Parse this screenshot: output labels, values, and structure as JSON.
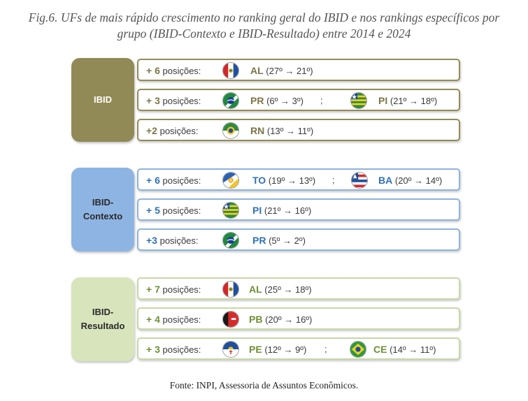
{
  "title_line1": "Fig.6. UFs de mais rápido crescimento no ranking geral do IBID e nos rankings específicos por",
  "title_line2": "grupo (IBID-Contexto e IBID-Resultado) entre 2014 e 2024",
  "source": "Fonte: INPI, Assessoria de Assuntos Econômicos.",
  "colors": {
    "ibid_box": "#928a56",
    "ibid_accent": "#7c7546",
    "contexto_box": "#8eb4e3",
    "contexto_accent": "#2f72b8",
    "resultado_box": "#d8e4bc",
    "resultado_accent": "#6f8f34"
  },
  "groups": [
    {
      "label_line1": "IBID",
      "label_line2": "",
      "rows": [
        {
          "gain": "+ 6",
          "unit": "posições:",
          "states": [
            {
              "uf": "AL",
              "detail": "(27º → 21º)",
              "flag_icon": "alagoas-flag-icon"
            }
          ]
        },
        {
          "gain": "+ 3",
          "unit": "posições:",
          "states": [
            {
              "uf": "PR",
              "detail": "(6º → 3º)",
              "flag_icon": "parana-flag-icon"
            },
            {
              "uf": "PI",
              "detail": "(21º → 18º)",
              "flag_icon": "piaui-flag-icon"
            }
          ]
        },
        {
          "gain": "+2",
          "unit": "posições:",
          "states": [
            {
              "uf": "RN",
              "detail": "(13º → 11º)",
              "flag_icon": "rio-grande-do-norte-flag-icon"
            }
          ]
        }
      ]
    },
    {
      "label_line1": "IBID-",
      "label_line2": "Contexto",
      "rows": [
        {
          "gain": "+ 6",
          "unit": "posições:",
          "states": [
            {
              "uf": "TO",
              "detail": "(19º → 13º)",
              "flag_icon": "tocantins-flag-icon"
            },
            {
              "uf": "BA",
              "detail": "(20º → 14º)",
              "flag_icon": "bahia-flag-icon"
            }
          ]
        },
        {
          "gain": "+ 5",
          "unit": "posições:",
          "states": [
            {
              "uf": "PI",
              "detail": "(21º → 16º)",
              "flag_icon": "piaui-flag-icon"
            }
          ]
        },
        {
          "gain": "+3",
          "unit": "posições:",
          "states": [
            {
              "uf": "PR",
              "detail": "(5º → 2º)",
              "flag_icon": "parana-flag-icon"
            }
          ]
        }
      ]
    },
    {
      "label_line1": "IBID-",
      "label_line2": "Resultado",
      "rows": [
        {
          "gain": "+ 7",
          "unit": "posições:",
          "states": [
            {
              "uf": "AL",
              "detail": "(25º → 18º)",
              "flag_icon": "alagoas-flag-icon"
            }
          ]
        },
        {
          "gain": "+ 4",
          "unit": "posições:",
          "states": [
            {
              "uf": "PB",
              "detail": "(20º → 16º)",
              "flag_icon": "paraiba-flag-icon"
            }
          ]
        },
        {
          "gain": "+ 3",
          "unit": "posições:",
          "states": [
            {
              "uf": "PE",
              "detail": "(12º → 9º)",
              "flag_icon": "pernambuco-flag-icon"
            },
            {
              "uf": "CE",
              "detail": "(14º → 11º)",
              "flag_icon": "ceara-flag-icon"
            }
          ]
        }
      ]
    }
  ],
  "separator": ";"
}
